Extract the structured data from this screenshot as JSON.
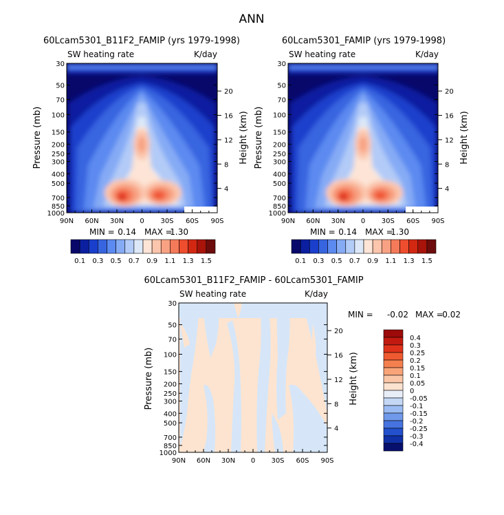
{
  "figure_title": "ANN",
  "chart_data": [
    {
      "type": "heatmap",
      "title": "60Lcam5301_B11F2_FAMIP (yrs 1979-1998)",
      "subtitle_left": "SW heating rate",
      "subtitle_right": "K/day",
      "xlabel": "",
      "ylabel": "Pressure (mb)",
      "ylabel_right": "Height (km)",
      "x_ticks": [
        "90N",
        "60N",
        "30N",
        "0",
        "30S",
        "60S",
        "90S"
      ],
      "y_ticks": [
        "30",
        "50",
        "70",
        "100",
        "150",
        "200",
        "250",
        "300",
        "400",
        "500",
        "700",
        "850",
        "1000"
      ],
      "y_right_ticks": [
        "20",
        "16",
        "12",
        "8",
        "4"
      ],
      "min_label": "MIN =",
      "min_value": "0.14",
      "max_label": "MAX =",
      "max_value": "1.30",
      "colorbar_labels": [
        "0.1",
        "0.3",
        "0.5",
        "0.7",
        "0.9",
        "1.1",
        "1.3",
        "1.5"
      ],
      "colorbar_colors": [
        "#08086b",
        "#0b1fa0",
        "#1a3fcc",
        "#3765e0",
        "#5b8af0",
        "#86abf5",
        "#b2cbf7",
        "#dce8f8",
        "#fde4d6",
        "#fbc6ad",
        "#f8a283",
        "#f57a59",
        "#ee4d2e",
        "#d22812",
        "#a8140a",
        "#6d0c0c"
      ],
      "ylim": [
        1000,
        30
      ]
    },
    {
      "type": "heatmap",
      "title": "60Lcam5301_FAMIP (yrs 1979-1998)",
      "subtitle_left": "SW heating rate",
      "subtitle_right": "K/day",
      "xlabel": "",
      "ylabel": "Pressure (mb)",
      "ylabel_right": "Height (km)",
      "x_ticks": [
        "90N",
        "60N",
        "30N",
        "0",
        "30S",
        "60S",
        "90S"
      ],
      "y_ticks": [
        "30",
        "50",
        "70",
        "100",
        "150",
        "200",
        "250",
        "300",
        "400",
        "500",
        "700",
        "850",
        "1000"
      ],
      "y_right_ticks": [
        "20",
        "16",
        "12",
        "8",
        "4"
      ],
      "min_label": "MIN =",
      "min_value": "0.14",
      "max_label": "MAX =",
      "max_value": "1.30",
      "colorbar_labels": [
        "0.1",
        "0.3",
        "0.5",
        "0.7",
        "0.9",
        "1.1",
        "1.3",
        "1.5"
      ],
      "ylim": [
        1000,
        30
      ]
    },
    {
      "type": "heatmap",
      "title": "60Lcam5301_B11F2_FAMIP - 60Lcam5301_FAMIP",
      "subtitle_left": "SW heating rate",
      "subtitle_right": "K/day",
      "xlabel": "",
      "ylabel": "Pressure (mb)",
      "ylabel_right": "Height (km)",
      "x_ticks": [
        "90N",
        "60N",
        "30N",
        "0",
        "30S",
        "60S",
        "90S"
      ],
      "y_ticks": [
        "30",
        "50",
        "70",
        "100",
        "150",
        "200",
        "250",
        "300",
        "400",
        "500",
        "700",
        "850",
        "1000"
      ],
      "y_right_ticks": [
        "20",
        "16",
        "12",
        "8",
        "4"
      ],
      "min_label": "MIN =",
      "min_value": "-0.02",
      "max_label": "MAX =",
      "max_value": "0.02",
      "colorbar_labels": [
        "0.4",
        "0.3",
        "0.25",
        "0.2",
        "0.15",
        "0.1",
        "0.05",
        "0",
        "-0.05",
        "-0.1",
        "-0.15",
        "-0.2",
        "-0.25",
        "-0.3",
        "-0.4"
      ],
      "colorbar_colors": [
        "#9c0a0a",
        "#c21a10",
        "#e0321a",
        "#ef5a30",
        "#f5804f",
        "#f9a478",
        "#fbc6a6",
        "#fde2cf",
        "#e8eef8",
        "#c4d8f6",
        "#9bbcf2",
        "#7099ea",
        "#4673df",
        "#2350cc",
        "#1030a6",
        "#08106e"
      ],
      "diff_colors": {
        "positive": "#fde4d0",
        "negative": "#d6e6f8"
      },
      "ylim": [
        1000,
        30
      ]
    }
  ]
}
